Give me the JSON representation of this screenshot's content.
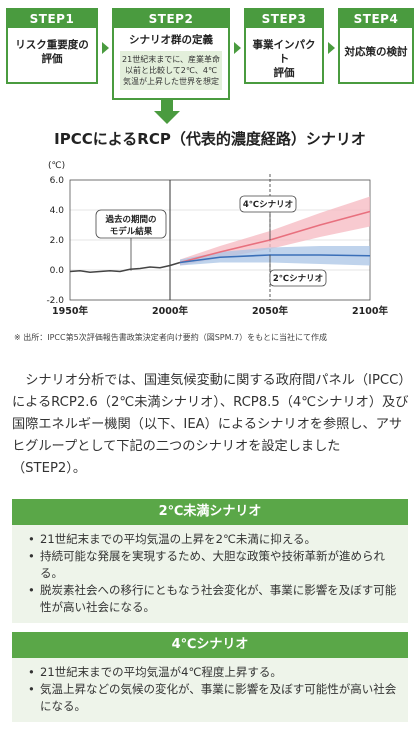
{
  "steps": [
    {
      "head": "STEP1",
      "body": "リスク重要度の\n評価"
    },
    {
      "head": "STEP2",
      "body": "シナリオ群の定義",
      "sub": "21世紀末までに、産業革命以前と比較して2℃、4℃気温が上昇した世界を想定"
    },
    {
      "head": "STEP3",
      "body": "事業インパクト\n評価"
    },
    {
      "head": "STEP4",
      "body": "対応策の検討"
    }
  ],
  "chart_title": "IPCCによるRCP（代表的濃度経路）シナリオ",
  "chart_data": {
    "type": "line",
    "ylabel": "(℃)",
    "ylim": [
      -2.0,
      6.0
    ],
    "yticks": [
      "6.0",
      "4.0",
      "2.0",
      "0.0",
      "-2.0"
    ],
    "xlim": [
      1950,
      2100
    ],
    "xticks": [
      "1950年",
      "2000年",
      "2050年",
      "2100年"
    ],
    "historical": {
      "label": "過去の期間の\nモデル結果",
      "x": [
        1950,
        1955,
        1960,
        1965,
        1970,
        1975,
        1980,
        1985,
        1990,
        1995,
        2000,
        2005
      ],
      "y": [
        -0.1,
        -0.05,
        -0.15,
        -0.1,
        -0.05,
        -0.1,
        0.05,
        0.1,
        0.2,
        0.15,
        0.3,
        0.5
      ]
    },
    "series": [
      {
        "name": "4℃シナリオ",
        "color": "#e8707e",
        "band": "#f5b8c0",
        "x": [
          2005,
          2025,
          2050,
          2075,
          2100
        ],
        "y": [
          0.5,
          1.2,
          2.0,
          3.0,
          3.9
        ],
        "lo": [
          0.3,
          0.8,
          1.4,
          2.2,
          2.9
        ],
        "hi": [
          0.7,
          1.6,
          2.6,
          3.8,
          4.9
        ]
      },
      {
        "name": "2℃シナリオ",
        "color": "#3a6fb8",
        "band": "#a9c4e6",
        "x": [
          2005,
          2025,
          2050,
          2075,
          2100
        ],
        "y": [
          0.5,
          0.85,
          1.0,
          1.0,
          0.95
        ],
        "lo": [
          0.3,
          0.5,
          0.5,
          0.4,
          0.3
        ],
        "hi": [
          0.7,
          1.2,
          1.5,
          1.6,
          1.6
        ]
      }
    ]
  },
  "source": "※ 出所：IPCC第5次評価報告書政策決定者向け要約（図SPM.7）をもとに当社にて作成",
  "paragraph": "シナリオ分析では、国連気候変動に関する政府間パネル（IPCC）によるRCP2.6（2℃未満シナリオ）、RCP8.5（4℃シナリオ）及び国際エネルギー機関（以下、IEA）によるシナリオを参照し、アサヒグループとして下記の二つのシナリオを設定しました（STEP2）。",
  "scenario_2c": {
    "title": "2℃未満シナリオ",
    "items": [
      "21世紀末までの平均気温の上昇を2℃未満に抑える。",
      "持続可能な発展を実現するため、大胆な政策や技術革新が進められる。",
      "脱炭素社会への移行にともなう社会変化が、事業に影響を及ぼす可能性が高い社会になる。"
    ]
  },
  "scenario_4c": {
    "title": "4℃シナリオ",
    "items": [
      "21世紀末までの平均気温が4℃程度上昇する。",
      "気温上昇などの気候の変化が、事業に影響を及ぼす可能性が高い社会になる。"
    ]
  }
}
